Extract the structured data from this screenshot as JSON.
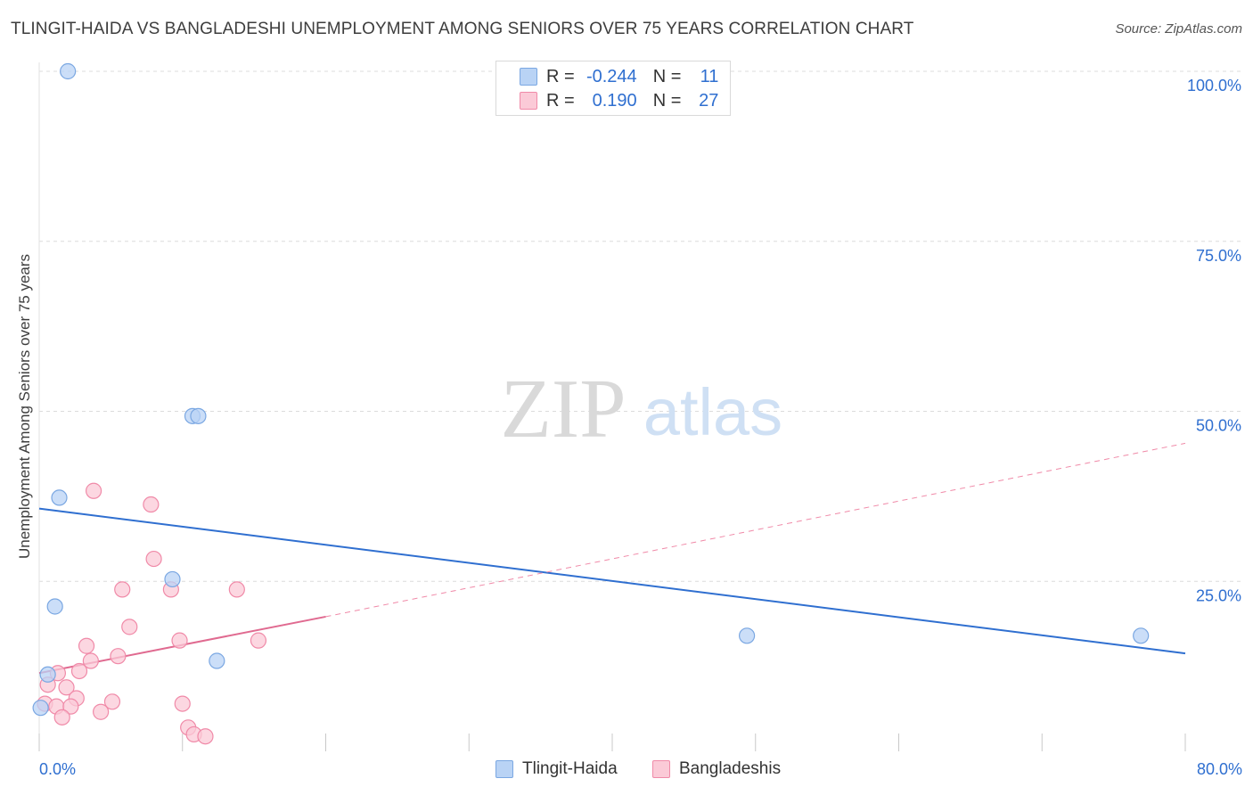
{
  "header": {
    "title": "TLINGIT-HAIDA VS BANGLADESHI UNEMPLOYMENT AMONG SENIORS OVER 75 YEARS CORRELATION CHART",
    "source": "Source: ZipAtlas.com"
  },
  "watermark": {
    "zip": "ZIP",
    "atlas": "atlas"
  },
  "legend_top": {
    "rows": [
      {
        "r_label": "R = ",
        "r_value": "-0.244",
        "n_label": "N = ",
        "n_value": "11",
        "color": "#7aa7e2"
      },
      {
        "r_label": "R = ",
        "r_value": "0.190",
        "n_label": "N = ",
        "n_value": "27",
        "color": "#f08aa8"
      }
    ]
  },
  "legend_bottom": {
    "items": [
      {
        "label": "Tlingit-Haida",
        "color": "#7aa7e2"
      },
      {
        "label": "Bangladeshis",
        "color": "#f08aa8"
      }
    ]
  },
  "colors": {
    "blue_fill": "#b9d3f5",
    "blue_stroke": "#7aa7e2",
    "blue_line": "#2f6fd0",
    "pink_fill": "#fbcad7",
    "pink_stroke": "#f08aa8",
    "pink_line": "#e06a90",
    "grid": "#dcdcdc",
    "axis_text": "#2f6fd0"
  },
  "chart_data": {
    "type": "scatter",
    "title": "TLINGIT-HAIDA VS BANGLADESHI UNEMPLOYMENT AMONG SENIORS OVER 75 YEARS CORRELATION CHART",
    "xlabel": "",
    "ylabel": "Unemployment Among Seniors over 75 years",
    "xlim": [
      0,
      80
    ],
    "ylim": [
      0,
      100
    ],
    "x_tick_labels": [
      "0.0%",
      "80.0%"
    ],
    "y_ticks": [
      {
        "value": 25,
        "label": "25.0%"
      },
      {
        "value": 50,
        "label": "50.0%"
      },
      {
        "value": 75,
        "label": "75.0%"
      },
      {
        "value": 100,
        "label": "100.0%"
      }
    ],
    "grid": true,
    "series": [
      {
        "name": "Tlingit-Haida",
        "r": -0.244,
        "n": 11,
        "points": [
          {
            "x": 2.0,
            "y": 100.0
          },
          {
            "x": 10.7,
            "y": 49.3
          },
          {
            "x": 11.1,
            "y": 49.3
          },
          {
            "x": 1.4,
            "y": 37.3
          },
          {
            "x": 9.3,
            "y": 25.3
          },
          {
            "x": 1.1,
            "y": 21.3
          },
          {
            "x": 49.4,
            "y": 17.0
          },
          {
            "x": 76.9,
            "y": 17.0
          },
          {
            "x": 12.4,
            "y": 13.3
          },
          {
            "x": 0.6,
            "y": 11.3
          },
          {
            "x": 0.1,
            "y": 6.4
          }
        ],
        "trend": {
          "x0": 0,
          "y0": 35.7,
          "x1": 80,
          "y1": 14.4,
          "style": "solid"
        }
      },
      {
        "name": "Bangladeshis",
        "r": 0.19,
        "n": 27,
        "points": [
          {
            "x": 3.8,
            "y": 38.3
          },
          {
            "x": 7.8,
            "y": 36.3
          },
          {
            "x": 8.0,
            "y": 28.3
          },
          {
            "x": 5.8,
            "y": 23.8
          },
          {
            "x": 9.2,
            "y": 23.8
          },
          {
            "x": 13.8,
            "y": 23.8
          },
          {
            "x": 6.3,
            "y": 18.3
          },
          {
            "x": 3.3,
            "y": 15.5
          },
          {
            "x": 9.8,
            "y": 16.3
          },
          {
            "x": 15.3,
            "y": 16.3
          },
          {
            "x": 5.5,
            "y": 14.0
          },
          {
            "x": 3.6,
            "y": 13.3
          },
          {
            "x": 2.8,
            "y": 11.8
          },
          {
            "x": 1.3,
            "y": 11.5
          },
          {
            "x": 0.6,
            "y": 9.8
          },
          {
            "x": 1.9,
            "y": 9.4
          },
          {
            "x": 2.6,
            "y": 7.8
          },
          {
            "x": 5.1,
            "y": 7.3
          },
          {
            "x": 10.0,
            "y": 7.0
          },
          {
            "x": 0.4,
            "y": 7.0
          },
          {
            "x": 1.2,
            "y": 6.6
          },
          {
            "x": 2.2,
            "y": 6.6
          },
          {
            "x": 4.3,
            "y": 5.8
          },
          {
            "x": 1.6,
            "y": 5.0
          },
          {
            "x": 10.4,
            "y": 3.5
          },
          {
            "x": 10.8,
            "y": 2.5
          },
          {
            "x": 11.6,
            "y": 2.2
          }
        ],
        "trend": {
          "x0": 0,
          "y0": 11.5,
          "x1": 20,
          "y1": 19.8,
          "style": "solid",
          "extension": {
            "x0": 20,
            "y0": 19.8,
            "x1": 80,
            "y1": 45.3,
            "style": "dashed"
          }
        }
      }
    ]
  }
}
